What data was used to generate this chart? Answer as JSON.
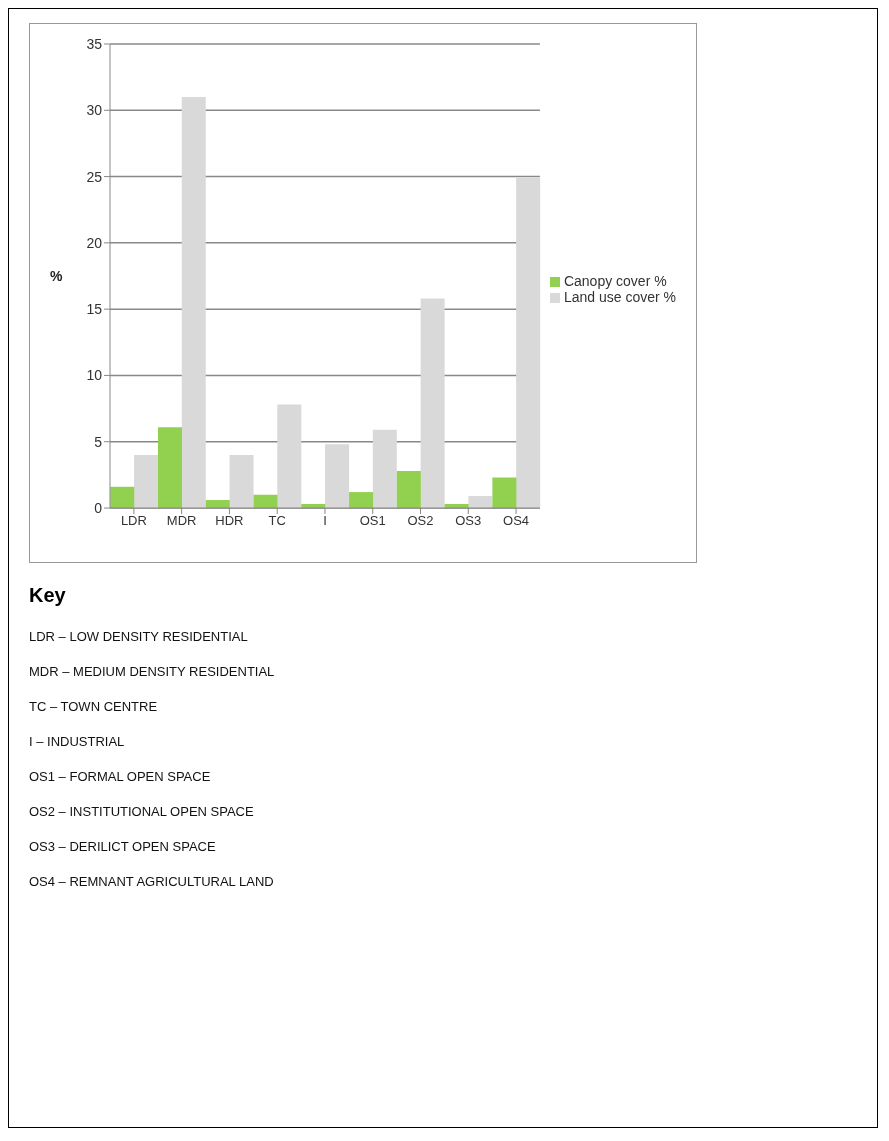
{
  "chart_data": {
    "type": "bar",
    "ylabel": "%",
    "categories": [
      "LDR",
      "MDR",
      "HDR",
      "TC",
      "I",
      "OS1",
      "OS2",
      "OS3",
      "OS4"
    ],
    "series": [
      {
        "name": "Land use cover %",
        "color": "#d9d9d9",
        "values": [
          4,
          31,
          4,
          7.8,
          4.8,
          5.9,
          15.8,
          0.9,
          24.9
        ]
      },
      {
        "name": "Canopy cover %",
        "color": "#92d050",
        "values": [
          1.6,
          6.1,
          0.6,
          1.0,
          0.3,
          1.2,
          2.8,
          0.3,
          2.3
        ]
      }
    ],
    "ylim": [
      0,
      35
    ],
    "yticks": [
      0,
      5,
      10,
      15,
      20,
      25,
      30,
      35
    ],
    "grid": "y",
    "legend": "right",
    "annotations": [
      "Key",
      "LDR – LOW DENSITY RESIDENTIAL",
      "MDR – MEDIUM DENSITY RESIDENTIAL",
      "TC – TOWN CENTRE",
      "I – INDUSTRIAL",
      "OS1 – FORMAL OPEN SPACE",
      "OS2 – INSTITUTIONAL OPEN SPACE",
      "OS3 – DERILICT OPEN SPACE",
      "OS4 – REMNANT AGRICULTURAL LAND"
    ]
  }
}
